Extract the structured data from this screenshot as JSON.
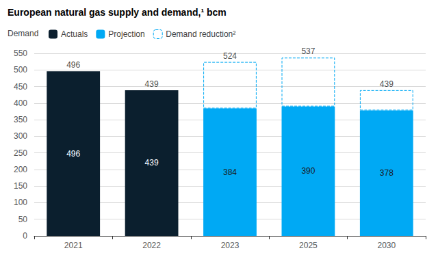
{
  "chart_data": {
    "type": "bar",
    "title": "European natural gas supply and demand,¹ bcm",
    "legend_title": "Demand",
    "legend": "top-left",
    "stacked": true,
    "grid": true,
    "categories": [
      "2021",
      "2022",
      "2023",
      "2025",
      "2030"
    ],
    "series": [
      {
        "name": "Actuals",
        "color": "#0b1f2e",
        "data_labels": true,
        "values": [
          496,
          439,
          null,
          null,
          null
        ]
      },
      {
        "name": "Projection",
        "color": "#00a9f4",
        "data_labels": true,
        "values": [
          null,
          null,
          384,
          390,
          378
        ]
      },
      {
        "name": "Demand reduction²",
        "color": "#00a9f4",
        "line_style": "dashed",
        "data_labels": false,
        "values": [
          null,
          null,
          140,
          147,
          61
        ]
      }
    ],
    "totals": [
      496,
      439,
      524,
      537,
      439
    ],
    "ylim": [
      0,
      550
    ],
    "yticks": [
      0,
      50,
      100,
      150,
      200,
      250,
      300,
      350,
      400,
      450,
      500,
      550
    ]
  }
}
